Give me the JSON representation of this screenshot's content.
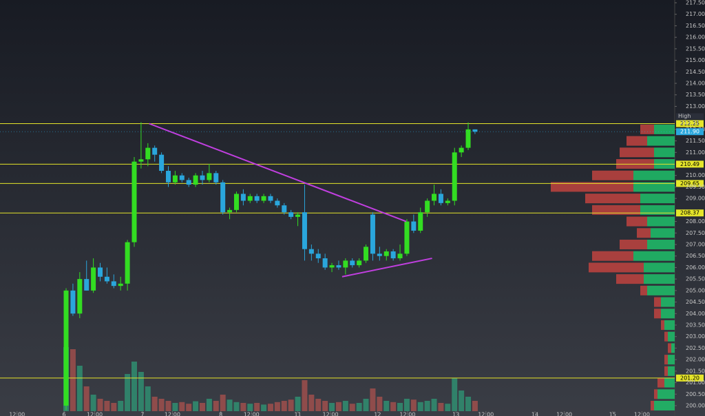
{
  "chart_data": {
    "type": "candlestick",
    "open": [
      200.0,
      205.0,
      204.0,
      205.5,
      205.0,
      206.0,
      205.6,
      205.4,
      205.2,
      205.3,
      207.1,
      210.6,
      210.7,
      211.2,
      210.9,
      210.2,
      209.7,
      210.0,
      209.8,
      209.6,
      210.0,
      209.8,
      210.1,
      209.7,
      208.4,
      208.5,
      209.2,
      208.9,
      209.1,
      208.9,
      209.1,
      208.9,
      208.7,
      208.4,
      208.2,
      208.4,
      206.8,
      206.6,
      206.4,
      206.0,
      206.1,
      206.0,
      206.3,
      206.1,
      206.3,
      208.3,
      206.6,
      206.5,
      206.7,
      206.4,
      206.6,
      208.0,
      207.6,
      208.4,
      208.9,
      209.2,
      208.8,
      208.9,
      211.0,
      211.2,
      212.0
    ],
    "high": [
      205.1,
      205.3,
      205.8,
      206.3,
      206.4,
      206.2,
      206.0,
      205.7,
      205.6,
      207.2,
      210.8,
      212.31,
      211.4,
      211.3,
      211.0,
      210.4,
      210.2,
      210.1,
      209.9,
      210.1,
      210.2,
      210.5,
      210.2,
      209.8,
      208.6,
      209.3,
      209.4,
      209.2,
      209.2,
      209.2,
      209.2,
      209.0,
      208.8,
      208.5,
      208.4,
      209.6,
      207.0,
      206.8,
      206.6,
      206.2,
      206.3,
      206.4,
      206.4,
      206.4,
      207.0,
      208.4,
      206.9,
      206.8,
      206.8,
      207.0,
      208.1,
      208.3,
      208.6,
      209.0,
      209.6,
      209.4,
      209.0,
      211.2,
      211.3,
      212.3,
      212.0
    ],
    "low": [
      199.8,
      203.9,
      203.8,
      205.0,
      204.9,
      205.4,
      205.3,
      205.1,
      205.0,
      205.0,
      206.9,
      210.3,
      210.4,
      210.6,
      210.1,
      209.5,
      209.6,
      209.7,
      209.5,
      209.5,
      209.6,
      209.7,
      209.6,
      208.3,
      208.1,
      208.4,
      208.7,
      208.8,
      208.8,
      208.8,
      208.8,
      208.6,
      208.3,
      208.1,
      207.8,
      206.3,
      206.3,
      206.2,
      205.9,
      205.8,
      205.9,
      205.7,
      206.0,
      206.0,
      206.2,
      206.3,
      206.3,
      206.3,
      206.3,
      206.3,
      206.5,
      207.5,
      207.5,
      208.2,
      208.7,
      208.7,
      208.7,
      208.7,
      210.8,
      211.1,
      211.8
    ],
    "close": [
      205.0,
      204.0,
      205.5,
      205.0,
      206.0,
      205.6,
      205.4,
      205.2,
      205.3,
      207.1,
      210.6,
      210.7,
      211.2,
      210.9,
      210.2,
      209.7,
      210.0,
      209.8,
      209.6,
      210.0,
      209.8,
      210.1,
      209.7,
      208.4,
      208.5,
      209.2,
      208.9,
      209.1,
      208.9,
      209.1,
      208.9,
      208.7,
      208.4,
      208.2,
      208.3,
      206.8,
      206.6,
      206.4,
      206.0,
      206.1,
      206.0,
      206.3,
      206.1,
      206.3,
      206.9,
      206.6,
      206.5,
      206.7,
      206.4,
      206.6,
      208.0,
      207.6,
      208.4,
      208.9,
      209.2,
      208.8,
      208.9,
      211.0,
      211.2,
      212.0,
      211.9
    ],
    "volume": [
      155,
      150,
      110,
      60,
      40,
      30,
      25,
      20,
      25,
      90,
      120,
      95,
      60,
      35,
      30,
      25,
      20,
      22,
      18,
      24,
      20,
      30,
      25,
      40,
      28,
      22,
      20,
      18,
      20,
      16,
      18,
      22,
      25,
      28,
      35,
      75,
      40,
      30,
      25,
      20,
      22,
      25,
      18,
      20,
      30,
      55,
      35,
      25,
      22,
      20,
      30,
      28,
      22,
      25,
      30,
      20,
      18,
      80,
      50,
      35,
      25
    ],
    "ylim": [
      199.76,
      217.62
    ],
    "xlim": [
      -9.7,
      88.8
    ],
    "yticks": [
      {
        "value": 200,
        "label": "200.00"
      },
      {
        "value": 200.5,
        "label": "200.50"
      },
      {
        "value": 201,
        "label": "201.00"
      },
      {
        "value": 201.5,
        "label": "201.50"
      },
      {
        "value": 202,
        "label": "202.00"
      },
      {
        "value": 202.5,
        "label": "202.50"
      },
      {
        "value": 203,
        "label": "203.00"
      },
      {
        "value": 203.5,
        "label": "203.50"
      },
      {
        "value": 204,
        "label": "204.00"
      },
      {
        "value": 204.5,
        "label": "204.50"
      },
      {
        "value": 205,
        "label": "205.00"
      },
      {
        "value": 205.5,
        "label": "205.50"
      },
      {
        "value": 206,
        "label": "206.00"
      },
      {
        "value": 206.5,
        "label": "206.50"
      },
      {
        "value": 207,
        "label": "207.00"
      },
      {
        "value": 207.5,
        "label": "207.50"
      },
      {
        "value": 208,
        "label": "208.00"
      },
      {
        "value": 209,
        "label": "209.00"
      },
      {
        "value": 209.5,
        "label": "209.50"
      },
      {
        "value": 210,
        "label": "210.00"
      },
      {
        "value": 211,
        "label": "211.00"
      },
      {
        "value": 211.5,
        "label": "211.50"
      },
      {
        "value": 212,
        "label": "212.00"
      },
      {
        "value": 213,
        "label": "213.00"
      },
      {
        "value": 213.5,
        "label": "213.50"
      },
      {
        "value": 214,
        "label": "214.00"
      },
      {
        "value": 214.5,
        "label": "214.50"
      },
      {
        "value": 215,
        "label": "215.00"
      },
      {
        "value": 215.5,
        "label": "215.50"
      },
      {
        "value": 216,
        "label": "216.00"
      },
      {
        "value": 216.5,
        "label": "216.50"
      },
      {
        "value": 217,
        "label": "217.00"
      },
      {
        "value": 217.5,
        "label": "217.50"
      }
    ],
    "xticks": [
      {
        "value": -7.2,
        "label": "12:00"
      },
      {
        "value": -0.3,
        "label": "6"
      },
      {
        "value": 4.2,
        "label": "12:00"
      },
      {
        "value": 11.2,
        "label": "7"
      },
      {
        "value": 15.6,
        "label": "12:00"
      },
      {
        "value": 22.7,
        "label": "8"
      },
      {
        "value": 27.2,
        "label": "12:00"
      },
      {
        "value": 34.0,
        "label": "11"
      },
      {
        "value": 38.8,
        "label": "12:00"
      },
      {
        "value": 45.7,
        "label": "12"
      },
      {
        "value": 50.1,
        "label": "12:00"
      },
      {
        "value": 57.2,
        "label": "13"
      },
      {
        "value": 61.6,
        "label": "12:00"
      },
      {
        "value": 68.8,
        "label": "14"
      },
      {
        "value": 73.1,
        "label": "12:00"
      },
      {
        "value": 80.2,
        "label": "15"
      },
      {
        "value": 84.5,
        "label": "12:00"
      }
    ],
    "levels": [
      212.25,
      210.49,
      209.65,
      208.37,
      {
        "value": 201.2,
        "label": "201.20"
      }
    ],
    "high_marker": {
      "label": "High",
      "value": 212.31
    },
    "last_price": {
      "value": 211.9,
      "label": "211.90"
    },
    "trendlines": [
      {
        "x": [
          12.2,
          49.9
        ],
        "y": [
          212.25,
          208.0
        ]
      },
      {
        "x": [
          40.5,
          53.7
        ],
        "y": [
          205.6,
          206.4
        ]
      }
    ],
    "profile": {
      "price": [
        212.0,
        211.5,
        211.0,
        210.5,
        210.0,
        209.5,
        209.0,
        208.5,
        208.0,
        207.5,
        207.0,
        206.5,
        206.0,
        205.5,
        205.0,
        204.5,
        204.0,
        203.5,
        203.0,
        202.5,
        202.0,
        201.5,
        201.0,
        200.5,
        200.0
      ],
      "buy": [
        30,
        40,
        30,
        30,
        60,
        60,
        50,
        50,
        40,
        35,
        40,
        60,
        45,
        45,
        40,
        20,
        20,
        15,
        10,
        5,
        10,
        10,
        15,
        25,
        30
      ],
      "sell": [
        20,
        30,
        50,
        55,
        60,
        120,
        80,
        70,
        30,
        20,
        40,
        60,
        80,
        40,
        10,
        10,
        10,
        5,
        5,
        5,
        5,
        5,
        10,
        5,
        5
      ]
    }
  }
}
